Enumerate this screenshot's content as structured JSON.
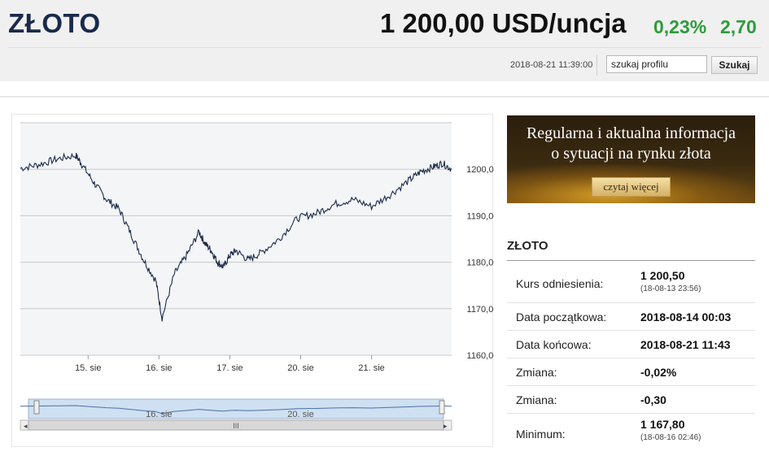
{
  "header": {
    "title": "ZŁOTO",
    "price": "1 200,00 USD/uncja",
    "change_pct": "0,23%",
    "change_abs": "2,70",
    "timestamp": "2018-08-21 11:39:00",
    "search_value": "szukaj profilu",
    "search_button": "Szukaj"
  },
  "colors": {
    "header_bg": "#f0f0f0",
    "title": "#1a2a4a",
    "positive": "#2d9c3c",
    "line": "#1a2a4a",
    "navigator_fill": "#cfe0f2"
  },
  "banner": {
    "line1": "Regularna i aktualna informacja",
    "line2": "o sytuacji na rynku złota",
    "cta": "czytaj więcej"
  },
  "info": {
    "title": "ZŁOTO",
    "rows": [
      {
        "label": "Kurs odniesienia:",
        "value": "1 200,50",
        "sub": "(18-08-13 23:56)"
      },
      {
        "label": "Data początkowa:",
        "value": "2018-08-14 00:03"
      },
      {
        "label": "Data końcowa:",
        "value": "2018-08-21 11:43"
      },
      {
        "label": "Zmiana:",
        "value": "-0,02%"
      },
      {
        "label": "Zmiana:",
        "value": "-0,30"
      },
      {
        "label": "Minimum:",
        "value": "1 167,80",
        "sub": "(18-08-16 02:46)"
      }
    ]
  },
  "chart_data": {
    "type": "line",
    "x_ticks": [
      "15. sie",
      "16. sie",
      "17. sie",
      "20. sie",
      "21. sie"
    ],
    "y_ticks": [
      "1160,00",
      "1170,00",
      "1180,00",
      "1190,00",
      "1200,00"
    ],
    "ylim": [
      1160,
      1210
    ],
    "grid": true,
    "navigator_ticks": [
      "16. sie",
      "20. sie"
    ],
    "scroll_thumb_label": "III",
    "series": [
      {
        "x": [
          0,
          0.3,
          0.6,
          0.9,
          1.0,
          1.2,
          1.4,
          1.6,
          1.8,
          2.0,
          2.2,
          2.3,
          2.5,
          2.7,
          2.9,
          3.0,
          3.1,
          3.2,
          3.3,
          3.4,
          3.5,
          3.7,
          3.9,
          4.2,
          4.5,
          4.8,
          5.1,
          5.4,
          5.7,
          6.0,
          6.3,
          6.5,
          6.7,
          6.85,
          7.0
        ],
        "values": [
          1200.2,
          1201.0,
          1202.2,
          1203.0,
          1201.0,
          1197.0,
          1193.5,
          1191.5,
          1186.0,
          1180.5,
          1176.0,
          1168.0,
          1177.5,
          1181.5,
          1186.5,
          1184.0,
          1182.5,
          1180.0,
          1179.0,
          1181.5,
          1182.5,
          1180.5,
          1182.0,
          1185.0,
          1189.5,
          1190.5,
          1192.5,
          1193.5,
          1192.0,
          1194.5,
          1197.5,
          1199.5,
          1200.5,
          1201.3,
          1200.0
        ]
      }
    ]
  }
}
